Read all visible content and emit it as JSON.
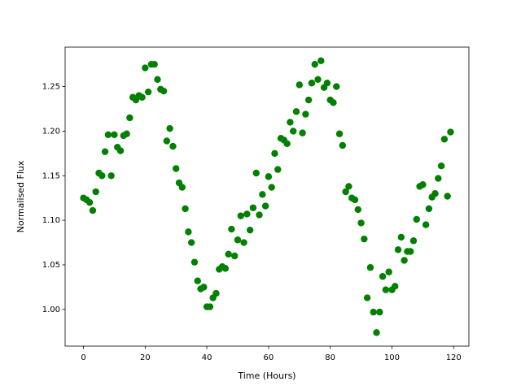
{
  "chart_data": {
    "type": "scatter",
    "xlabel": "Time (Hours)",
    "ylabel": "Normalised Flux",
    "color": "#008000",
    "x": [
      0,
      1,
      2,
      3,
      4,
      5,
      6,
      7,
      8,
      9,
      10,
      11,
      12,
      13,
      14,
      15,
      16,
      17,
      18,
      19,
      20,
      21,
      22,
      23,
      24,
      25,
      26,
      27,
      28,
      29,
      30,
      31,
      32,
      33,
      34,
      35,
      36,
      37,
      38,
      39,
      40,
      41,
      42,
      43,
      44,
      45,
      46,
      47,
      48,
      49,
      50,
      51,
      52,
      53,
      54,
      55,
      56,
      57,
      58,
      59,
      60,
      61,
      62,
      63,
      64,
      65,
      66,
      67,
      68,
      69,
      70,
      71,
      72,
      73,
      74,
      75,
      76,
      77,
      78,
      79,
      80,
      81,
      82,
      83,
      84,
      85,
      86,
      87,
      88,
      89,
      90,
      91,
      92,
      93,
      94,
      95,
      96,
      97,
      98,
      99,
      100,
      101,
      102,
      103,
      104,
      105,
      106,
      107,
      108,
      109,
      110,
      111,
      112,
      113,
      114,
      115,
      116,
      117,
      118,
      119
    ],
    "values": [
      1.125,
      1.123,
      1.12,
      1.111,
      1.132,
      1.153,
      1.15,
      1.177,
      1.196,
      1.15,
      1.196,
      1.182,
      1.178,
      1.195,
      1.197,
      1.215,
      1.238,
      1.235,
      1.24,
      1.238,
      1.271,
      1.244,
      1.275,
      1.275,
      1.258,
      1.247,
      1.245,
      1.189,
      1.203,
      1.183,
      1.158,
      1.142,
      1.137,
      1.113,
      1.087,
      1.075,
      1.053,
      1.032,
      1.023,
      1.025,
      1.003,
      1.003,
      1.013,
      1.018,
      1.045,
      1.048,
      1.046,
      1.062,
      1.09,
      1.06,
      1.078,
      1.105,
      1.075,
      1.107,
      1.089,
      1.114,
      1.153,
      1.106,
      1.129,
      1.116,
      1.149,
      1.137,
      1.175,
      1.157,
      1.192,
      1.19,
      1.186,
      1.21,
      1.2,
      1.222,
      1.252,
      1.198,
      1.219,
      1.235,
      1.254,
      1.275,
      1.258,
      1.279,
      1.249,
      1.254,
      1.235,
      1.232,
      1.25,
      1.197,
      1.184,
      1.132,
      1.138,
      1.125,
      1.123,
      1.112,
      1.097,
      1.079,
      1.013,
      1.047,
      0.997,
      0.974,
      0.997,
      1.037,
      1.022,
      1.042,
      1.022,
      1.026,
      1.067,
      1.081,
      1.055,
      1.065,
      1.065,
      1.077,
      1.101,
      1.138,
      1.14,
      1.095,
      1.113,
      1.126,
      1.13,
      1.147,
      1.161,
      1.191,
      1.127,
      1.199
    ],
    "xlim": [
      -5.95,
      124.95
    ],
    "ylim": [
      0.9588,
      1.2943
    ],
    "xticks": [
      0,
      20,
      40,
      60,
      80,
      100,
      120
    ],
    "yticks": [
      {
        "value": 1.0,
        "label": "1.00"
      },
      {
        "value": 1.05,
        "label": "1.05"
      },
      {
        "value": 1.1,
        "label": "1.10"
      },
      {
        "value": 1.15,
        "label": "1.15"
      },
      {
        "value": 1.2,
        "label": "1.20"
      },
      {
        "value": 1.25,
        "label": "1.25"
      }
    ],
    "grid": false
  }
}
